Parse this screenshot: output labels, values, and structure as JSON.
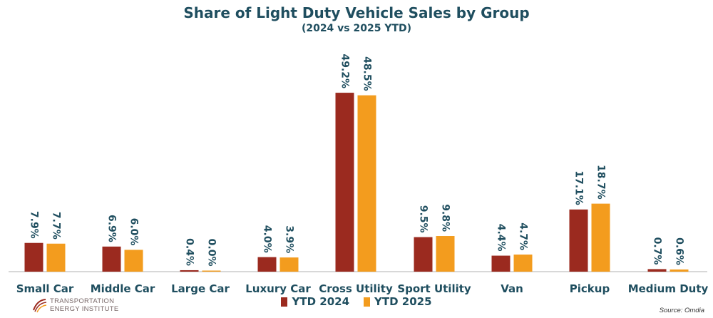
{
  "chart_data": {
    "type": "bar",
    "title": "Share of Light Duty Vehicle Sales by Group",
    "subtitle": "(2024 vs 2025 YTD)",
    "categories": [
      "Small Car",
      "Middle Car",
      "Large Car",
      "Luxury Car",
      "Cross Utility",
      "Sport Utility",
      "Van",
      "Pickup",
      "Medium Duty"
    ],
    "series": [
      {
        "name": "YTD 2024",
        "color": "#9b2a1f",
        "values": [
          7.9,
          6.9,
          0.4,
          4.0,
          49.2,
          9.5,
          4.4,
          17.1,
          0.7
        ],
        "labels": [
          "7.9%",
          "6.9%",
          "0.4%",
          "4.0%",
          "49.2%",
          "9.5%",
          "4.4%",
          "17.1%",
          "0.7%"
        ]
      },
      {
        "name": "YTD 2025",
        "color": "#f39c1e",
        "values": [
          7.7,
          6.0,
          0.0,
          3.9,
          48.5,
          9.8,
          4.7,
          18.7,
          0.6
        ],
        "labels": [
          "7.7%",
          "6.0%",
          "0.0%",
          "3.9%",
          "48.5%",
          "9.8%",
          "4.7%",
          "18.7%",
          "0.6%"
        ]
      }
    ],
    "ylim": [
      0,
      50
    ],
    "grid": false,
    "legend_position": "bottom"
  },
  "logo": {
    "line1": "TRANSPORTATION",
    "line2": "ENERGY INSTITUTE"
  },
  "source": "Source: Omdia"
}
